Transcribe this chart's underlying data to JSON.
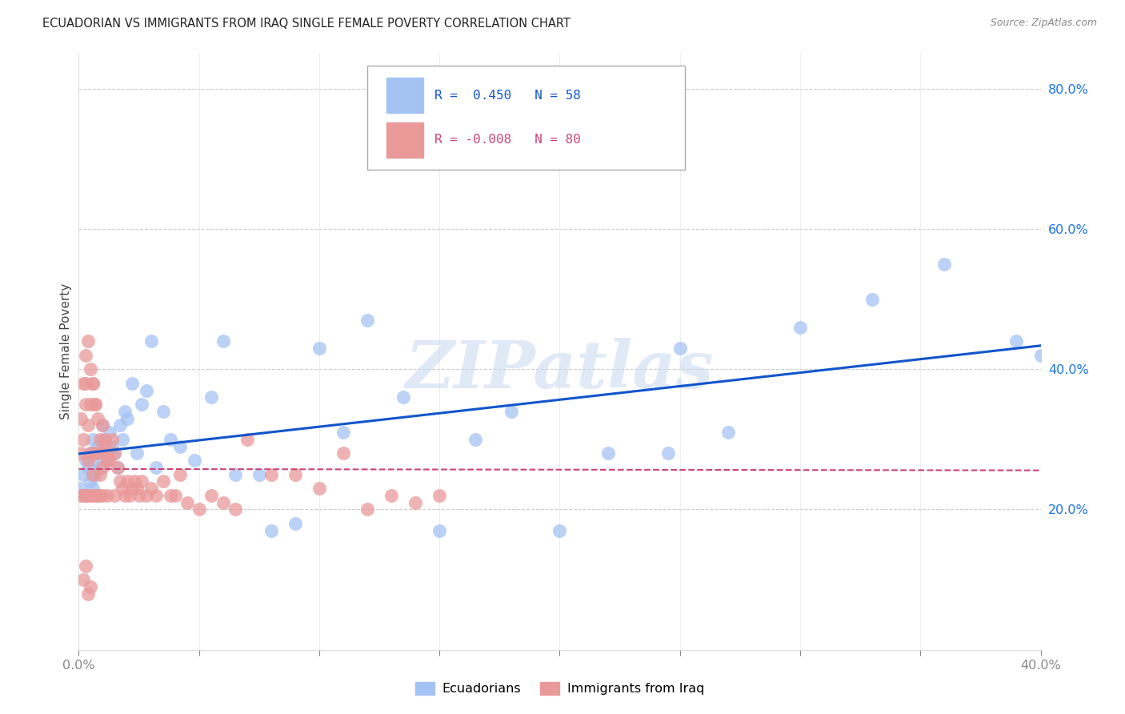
{
  "title": "ECUADORIAN VS IMMIGRANTS FROM IRAQ SINGLE FEMALE POVERTY CORRELATION CHART",
  "source": "Source: ZipAtlas.com",
  "ylabel": "Single Female Poverty",
  "xlim": [
    0.0,
    0.4
  ],
  "ylim": [
    0.0,
    0.85
  ],
  "y_tick_labels_right": [
    "20.0%",
    "40.0%",
    "60.0%",
    "80.0%"
  ],
  "y_tick_vals_right": [
    0.2,
    0.4,
    0.6,
    0.8
  ],
  "color_blue": "#a4c2f4",
  "color_pink": "#ea9999",
  "color_blue_line": "#1155cc",
  "color_pink_line": "#cc4477",
  "color_grid": "#cccccc",
  "watermark": "ZIPatlas",
  "ecuadorians_x": [
    0.001,
    0.002,
    0.003,
    0.003,
    0.004,
    0.005,
    0.005,
    0.006,
    0.006,
    0.007,
    0.007,
    0.008,
    0.009,
    0.01,
    0.01,
    0.011,
    0.012,
    0.013,
    0.014,
    0.015,
    0.016,
    0.017,
    0.018,
    0.019,
    0.02,
    0.022,
    0.024,
    0.026,
    0.028,
    0.03,
    0.032,
    0.035,
    0.038,
    0.042,
    0.048,
    0.055,
    0.06,
    0.065,
    0.075,
    0.08,
    0.09,
    0.1,
    0.11,
    0.12,
    0.135,
    0.15,
    0.165,
    0.18,
    0.2,
    0.22,
    0.245,
    0.27,
    0.3,
    0.33,
    0.36,
    0.39,
    0.4,
    0.25
  ],
  "ecuadorians_y": [
    0.23,
    0.25,
    0.27,
    0.22,
    0.26,
    0.28,
    0.24,
    0.3,
    0.23,
    0.27,
    0.25,
    0.29,
    0.26,
    0.28,
    0.32,
    0.3,
    0.27,
    0.31,
    0.29,
    0.28,
    0.26,
    0.32,
    0.3,
    0.34,
    0.33,
    0.38,
    0.28,
    0.35,
    0.37,
    0.44,
    0.26,
    0.34,
    0.3,
    0.29,
    0.27,
    0.36,
    0.44,
    0.25,
    0.25,
    0.17,
    0.18,
    0.43,
    0.31,
    0.47,
    0.36,
    0.17,
    0.3,
    0.34,
    0.17,
    0.28,
    0.28,
    0.31,
    0.46,
    0.5,
    0.55,
    0.44,
    0.42,
    0.43
  ],
  "iraq_x": [
    0.001,
    0.001,
    0.001,
    0.002,
    0.002,
    0.002,
    0.003,
    0.003,
    0.003,
    0.004,
    0.004,
    0.004,
    0.005,
    0.005,
    0.005,
    0.006,
    0.006,
    0.006,
    0.007,
    0.007,
    0.007,
    0.008,
    0.008,
    0.009,
    0.009,
    0.01,
    0.01,
    0.011,
    0.012,
    0.012,
    0.013,
    0.014,
    0.015,
    0.015,
    0.016,
    0.017,
    0.018,
    0.019,
    0.02,
    0.021,
    0.022,
    0.023,
    0.024,
    0.025,
    0.026,
    0.028,
    0.03,
    0.032,
    0.035,
    0.038,
    0.04,
    0.042,
    0.045,
    0.05,
    0.055,
    0.06,
    0.065,
    0.07,
    0.08,
    0.09,
    0.1,
    0.11,
    0.12,
    0.13,
    0.14,
    0.15,
    0.003,
    0.004,
    0.005,
    0.006,
    0.007,
    0.008,
    0.009,
    0.01,
    0.011,
    0.012,
    0.002,
    0.003,
    0.004,
    0.005
  ],
  "iraq_y": [
    0.22,
    0.28,
    0.33,
    0.3,
    0.38,
    0.22,
    0.35,
    0.38,
    0.22,
    0.32,
    0.27,
    0.22,
    0.28,
    0.35,
    0.22,
    0.38,
    0.25,
    0.22,
    0.35,
    0.22,
    0.28,
    0.28,
    0.22,
    0.25,
    0.22,
    0.22,
    0.26,
    0.3,
    0.28,
    0.22,
    0.27,
    0.3,
    0.28,
    0.22,
    0.26,
    0.24,
    0.23,
    0.22,
    0.24,
    0.22,
    0.23,
    0.24,
    0.23,
    0.22,
    0.24,
    0.22,
    0.23,
    0.22,
    0.24,
    0.22,
    0.22,
    0.25,
    0.21,
    0.2,
    0.22,
    0.21,
    0.2,
    0.3,
    0.25,
    0.25,
    0.23,
    0.28,
    0.2,
    0.22,
    0.21,
    0.22,
    0.42,
    0.44,
    0.4,
    0.38,
    0.35,
    0.33,
    0.3,
    0.32,
    0.29,
    0.27,
    0.1,
    0.12,
    0.08,
    0.09
  ]
}
